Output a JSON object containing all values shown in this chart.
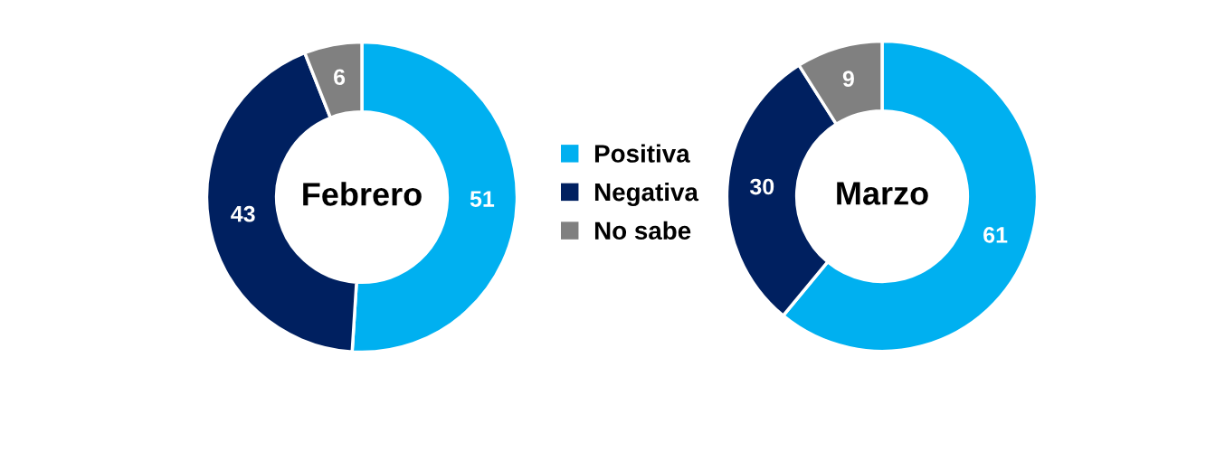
{
  "chart_data": [
    {
      "type": "donut",
      "title": "Febrero",
      "categories": [
        "Positiva",
        "Negativa",
        "No sabe"
      ],
      "values": [
        51,
        43,
        6
      ],
      "colors": [
        "#00b0f0",
        "#002060",
        "#808080"
      ],
      "data_labels": true,
      "legend": "right"
    },
    {
      "type": "donut",
      "title": "Marzo",
      "categories": [
        null,
        null,
        null
      ],
      "values": [
        61,
        30,
        9
      ],
      "colors": [
        "#00b0f0",
        "#002060",
        "#808080"
      ],
      "data_labels": true
    }
  ]
}
